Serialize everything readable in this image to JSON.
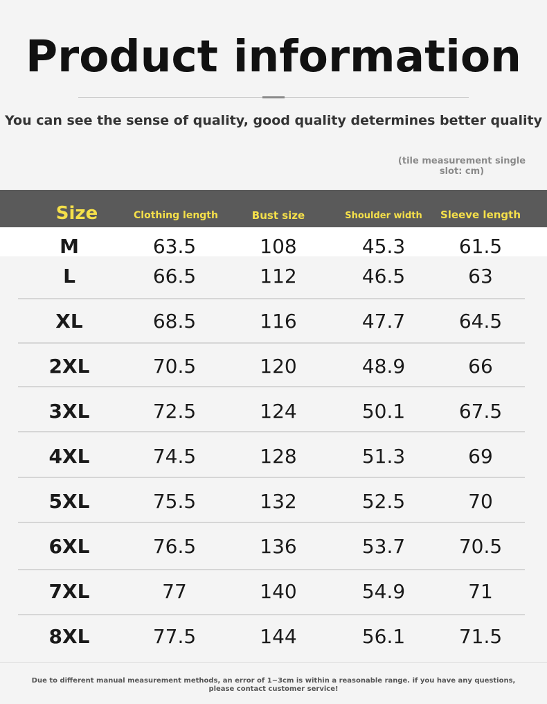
{
  "title": "Product information",
  "subtitle": "You can see the sense of quality, good quality determines better quality",
  "unit_note": "(tile measurement single slot: cm)",
  "header": {
    "size": "Size",
    "clothing_length": "Clothing length",
    "bust_size": "Bust size",
    "shoulder_width": "Shoulder width",
    "sleeve_length": "Sleeve length"
  },
  "rows": [
    {
      "size": "M",
      "clothing_length": "63.5",
      "bust_size": "108",
      "shoulder_width": "45.3",
      "sleeve_length": "61.5"
    },
    {
      "size": "L",
      "clothing_length": "66.5",
      "bust_size": "112",
      "shoulder_width": "46.5",
      "sleeve_length": "63"
    },
    {
      "size": "XL",
      "clothing_length": "68.5",
      "bust_size": "116",
      "shoulder_width": "47.7",
      "sleeve_length": "64.5"
    },
    {
      "size": "2XL",
      "clothing_length": "70.5",
      "bust_size": "120",
      "shoulder_width": "48.9",
      "sleeve_length": "66"
    },
    {
      "size": "3XL",
      "clothing_length": "72.5",
      "bust_size": "124",
      "shoulder_width": "50.1",
      "sleeve_length": "67.5"
    },
    {
      "size": "4XL",
      "clothing_length": "74.5",
      "bust_size": "128",
      "shoulder_width": "51.3",
      "sleeve_length": "69"
    },
    {
      "size": "5XL",
      "clothing_length": "75.5",
      "bust_size": "132",
      "shoulder_width": "52.5",
      "sleeve_length": "70"
    },
    {
      "size": "6XL",
      "clothing_length": "76.5",
      "bust_size": "136",
      "shoulder_width": "53.7",
      "sleeve_length": "70.5"
    },
    {
      "size": "7XL",
      "clothing_length": "77",
      "bust_size": "140",
      "shoulder_width": "54.9",
      "sleeve_length": "71"
    },
    {
      "size": "8XL",
      "clothing_length": "77.5",
      "bust_size": "144",
      "shoulder_width": "56.1",
      "sleeve_length": "71.5"
    }
  ],
  "footer": "Due to different manual measurement methods, an error of 1~3cm is within a reasonable range. if you have any questions, please contact customer service!",
  "colors": {
    "header_bg": "#5a5a5a",
    "header_text": "#f5e04a",
    "page_bg": "#f4f4f4"
  }
}
